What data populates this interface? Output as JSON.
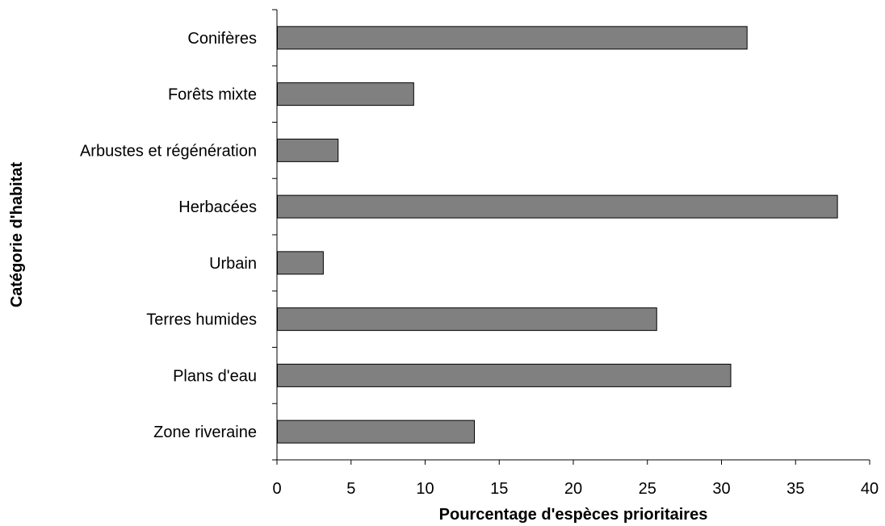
{
  "chart_data": {
    "type": "bar",
    "orientation": "horizontal",
    "categories": [
      "Conifères",
      "Forêts mixte",
      "Arbustes et régénération",
      "Herbacées",
      "Urbain",
      "Terres humides",
      "Plans d'eau",
      "Zone riveraine"
    ],
    "values": [
      31.7,
      9.2,
      4.1,
      37.8,
      3.1,
      25.6,
      30.6,
      13.3
    ],
    "xlabel": "Pourcentage d'espèces prioritaires",
    "ylabel": "Catégorie d'habitat",
    "xlim": [
      0,
      40
    ],
    "xticks": [
      "0",
      "5",
      "10",
      "15",
      "20",
      "25",
      "30",
      "35",
      "40"
    ],
    "bar_color": "#808080",
    "bar_edge_color": "#000000",
    "grid": false,
    "legend": "none"
  }
}
